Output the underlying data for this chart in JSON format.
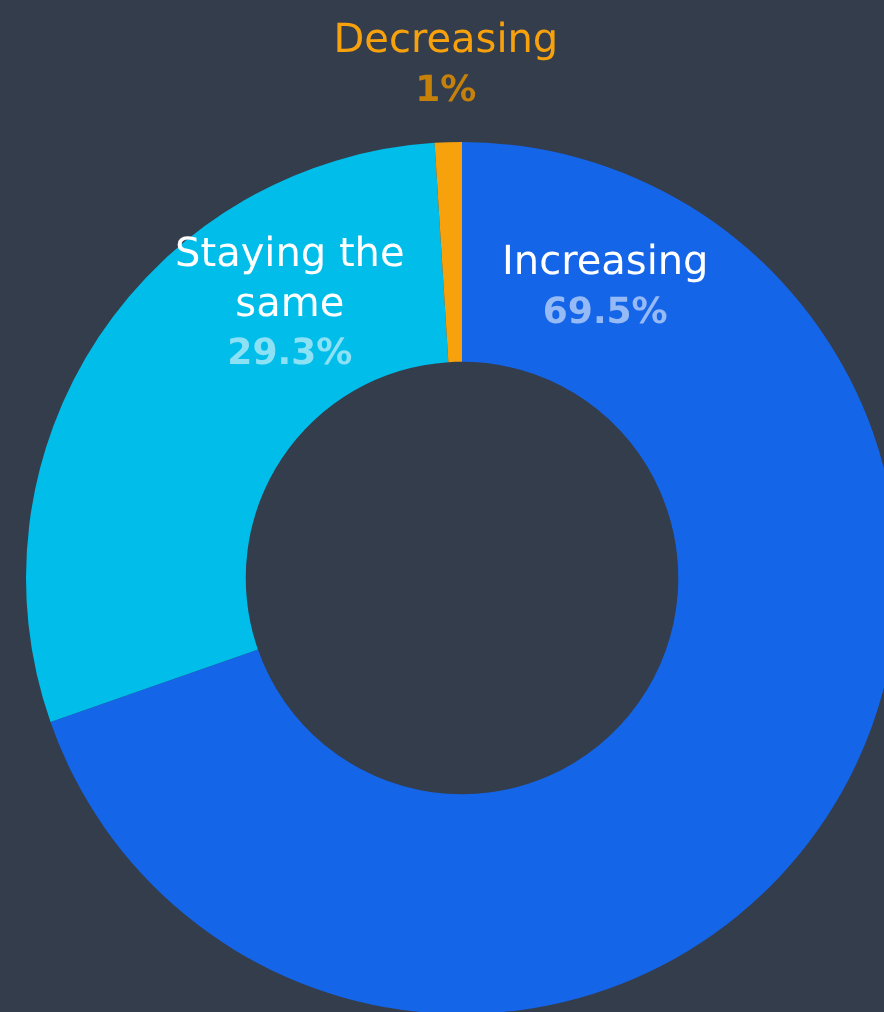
{
  "chart_data": {
    "type": "donut",
    "categories": [
      "Increasing",
      "Staying the same",
      "Decreasing"
    ],
    "values": [
      69.5,
      29.3,
      1
    ],
    "colors": [
      "#1565e8",
      "#00bde9",
      "#f7a10c"
    ],
    "value_labels": [
      "69.5%",
      "29.3%",
      "1%"
    ],
    "legend": false
  }
}
